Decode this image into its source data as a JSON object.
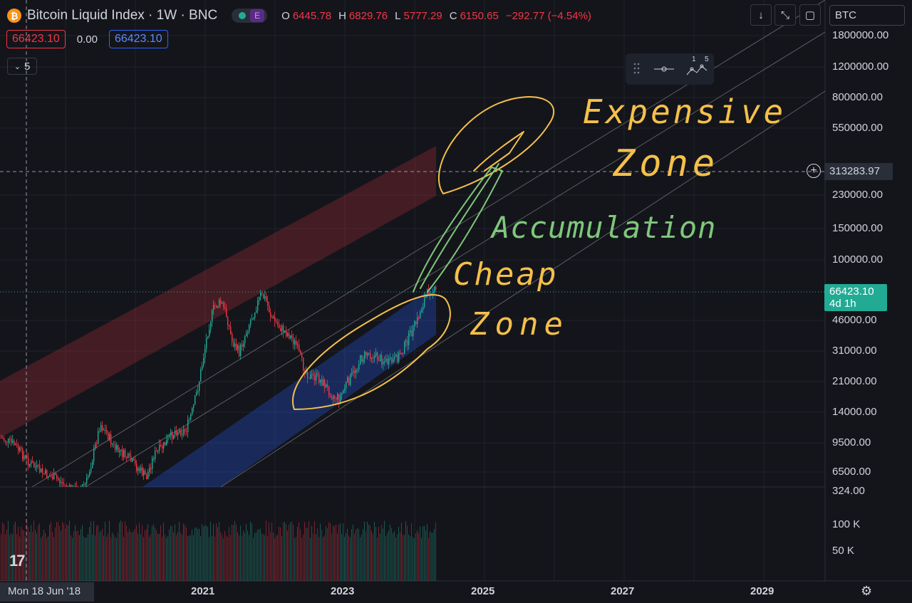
{
  "header": {
    "symbol_title": "Bitcoin Liquid Index · 1W · BNC",
    "exchange_badge": "E",
    "open_label": "O",
    "open_value": "6445.78",
    "high_label": "H",
    "high_value": "6829.76",
    "low_label": "L",
    "low_value": "5777.29",
    "close_label": "C",
    "close_value": "6150.65",
    "change": "−292.77 (−4.54%)"
  },
  "price_row": {
    "sell_price": "66423.10",
    "spread": "0.00",
    "buy_price": "66423.10"
  },
  "indicators_collapse_count": "5",
  "symbol_search": "BTC",
  "toolbar": {
    "single_label": "",
    "multi_labels": [
      "1",
      "5"
    ]
  },
  "price_axis": {
    "labels": [
      "1800000.00",
      "1200000.00",
      "800000.00",
      "550000.00",
      "230000.00",
      "150000.00",
      "100000.00",
      "46000.00",
      "31000.00",
      "21000.00",
      "14000.00",
      "9500.00",
      "6500.00",
      "324.00"
    ],
    "crosshair_price": "313283.97",
    "last_price": "66423.10",
    "last_price_countdown": "4d 1h",
    "volume_labels": [
      "100 K",
      "50 K"
    ]
  },
  "time_axis": {
    "labels": [
      "2021",
      "2023",
      "2025",
      "2027",
      "2029"
    ],
    "crosshair_date": "Mon 18 Jun '18"
  },
  "annotations": {
    "expensive_zone": [
      "Expensive",
      "Zone"
    ],
    "accumulation": "Accumulation",
    "cheap_zone": [
      "Cheap",
      "Zone"
    ]
  },
  "colors": {
    "background": "#14151b",
    "up": "#22ab94",
    "down": "#f23645",
    "accent_blue": "#2962ff",
    "annotation_yellow": "#f5c04a",
    "annotation_green": "#7fc77b"
  },
  "icons": {
    "logo": "tradingview-logo-icon",
    "download": "arrow-down-icon",
    "fullscreen": "fullscreen-icon",
    "snapshot": "snapshot-icon",
    "settings": "gear-icon",
    "add": "plus-circle-icon"
  }
}
